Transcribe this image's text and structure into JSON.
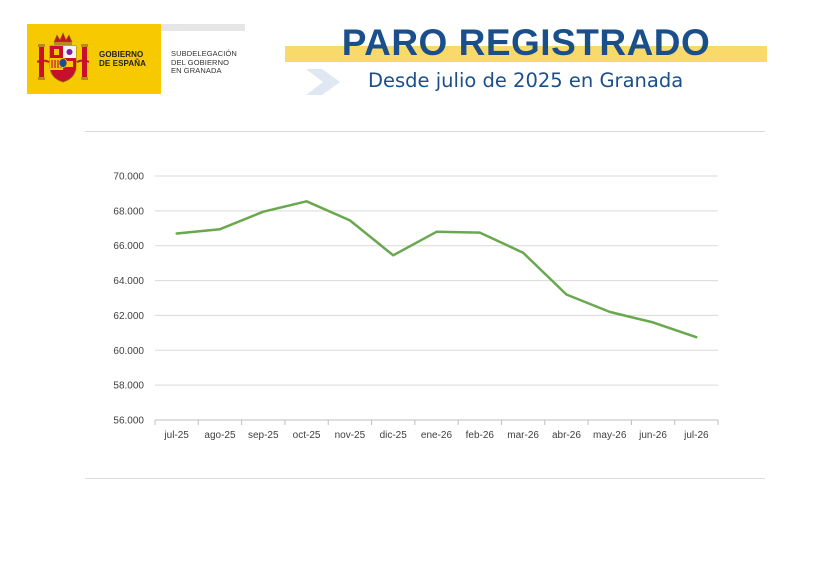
{
  "header": {
    "gov_line1": "GOBIERNO",
    "gov_line2": "DE ESPAÑA",
    "sub_line1": "SUBDELEGACIÓN",
    "sub_line2": "DEL GOBIERNO",
    "sub_line3": "EN GRANADA",
    "title": "PARO REGISTRADO",
    "subtitle": "Desde julio de 2025 en Granada"
  },
  "colors": {
    "title": "#1b4f8c",
    "title_band": "#f9d96a",
    "logo_yellow": "#f6c900",
    "line": "#6aa84f",
    "grid": "#d9d9d9"
  },
  "chart_data": {
    "type": "line",
    "categories": [
      "jul-25",
      "ago-25",
      "sep-25",
      "oct-25",
      "nov-25",
      "dic-25",
      "ene-26",
      "feb-26",
      "mar-26",
      "abr-26",
      "may-26",
      "jun-26",
      "jul-26"
    ],
    "series": [
      {
        "values": [
          66700,
          66950,
          67950,
          68550,
          67450,
          65450,
          66800,
          66750,
          65600,
          63200,
          62200,
          61600,
          60750
        ],
        "color": "#6aa84f"
      }
    ],
    "ylim": [
      56000,
      70000
    ],
    "yticks": [
      56000,
      58000,
      60000,
      62000,
      64000,
      66000,
      68000,
      70000
    ],
    "ytick_labels": [
      "56.000",
      "58.000",
      "60.000",
      "62.000",
      "64.000",
      "66.000",
      "68.000",
      "70.000"
    ],
    "grid": true,
    "legend": "none",
    "title": "",
    "xlabel": "",
    "ylabel": ""
  }
}
